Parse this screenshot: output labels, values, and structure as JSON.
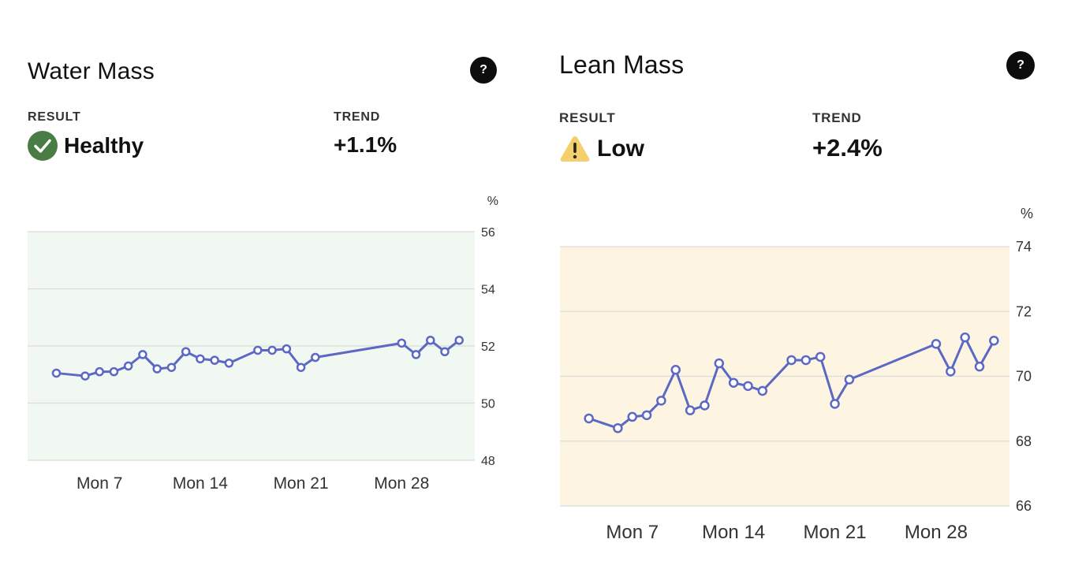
{
  "colors": {
    "line": "#5b68c4",
    "healthy_bg": "#f1f7f1",
    "low_bg": "#fdf5e1",
    "healthy_icon": "#4a7c46",
    "warning_icon": "#f5cf6b",
    "grid": "#dcdcdc"
  },
  "water": {
    "title": "Water Mass",
    "help_label": "?",
    "result_label": "RESULT",
    "result_value": "Healthy",
    "result_icon": "check-circle-icon",
    "trend_label": "TREND",
    "trend_value": "+1.1%"
  },
  "lean": {
    "title": "Lean Mass",
    "help_label": "?",
    "result_label": "RESULT",
    "result_value": "Low",
    "result_icon": "warning-triangle-icon",
    "trend_label": "TREND",
    "trend_value": "+2.4%"
  },
  "chart_data": [
    {
      "type": "line",
      "unit": "%",
      "ylim": [
        48,
        56
      ],
      "yticks": [
        48,
        50,
        52,
        54,
        56
      ],
      "xlim": [
        2,
        31
      ],
      "xticks": [
        {
          "x": 7,
          "label": "Mon 7"
        },
        {
          "x": 14,
          "label": "Mon 14"
        },
        {
          "x": 21,
          "label": "Mon 21"
        },
        {
          "x": 28,
          "label": "Mon 28"
        }
      ],
      "grid": true,
      "series": [
        {
          "x": [
            4,
            6,
            7,
            8,
            9,
            10,
            11,
            12,
            13,
            14,
            15,
            16,
            18,
            19,
            20,
            21,
            22,
            28,
            29,
            30,
            31,
            32
          ],
          "y": [
            51.05,
            50.95,
            51.1,
            51.1,
            51.3,
            51.7,
            51.2,
            51.25,
            51.8,
            51.55,
            51.5,
            51.4,
            51.85,
            51.85,
            51.9,
            51.25,
            51.6,
            52.1,
            51.7,
            52.2,
            51.8,
            52.2
          ]
        }
      ]
    },
    {
      "type": "line",
      "unit": "%",
      "ylim": [
        66,
        74
      ],
      "yticks": [
        66,
        68,
        70,
        72,
        74
      ],
      "xlim": [
        2,
        31
      ],
      "xticks": [
        {
          "x": 7,
          "label": "Mon 7"
        },
        {
          "x": 14,
          "label": "Mon 14"
        },
        {
          "x": 21,
          "label": "Mon 21"
        },
        {
          "x": 28,
          "label": "Mon 28"
        }
      ],
      "grid": true,
      "series": [
        {
          "x": [
            4,
            6,
            7,
            8,
            9,
            10,
            11,
            12,
            13,
            14,
            15,
            16,
            18,
            19,
            20,
            21,
            22,
            28,
            29,
            30,
            31,
            32
          ],
          "y": [
            68.7,
            68.4,
            68.75,
            68.8,
            69.25,
            70.2,
            68.95,
            69.1,
            70.4,
            69.8,
            69.7,
            69.55,
            70.5,
            70.5,
            70.6,
            69.15,
            69.9,
            71.0,
            70.15,
            71.2,
            70.3,
            71.1
          ]
        }
      ]
    }
  ]
}
